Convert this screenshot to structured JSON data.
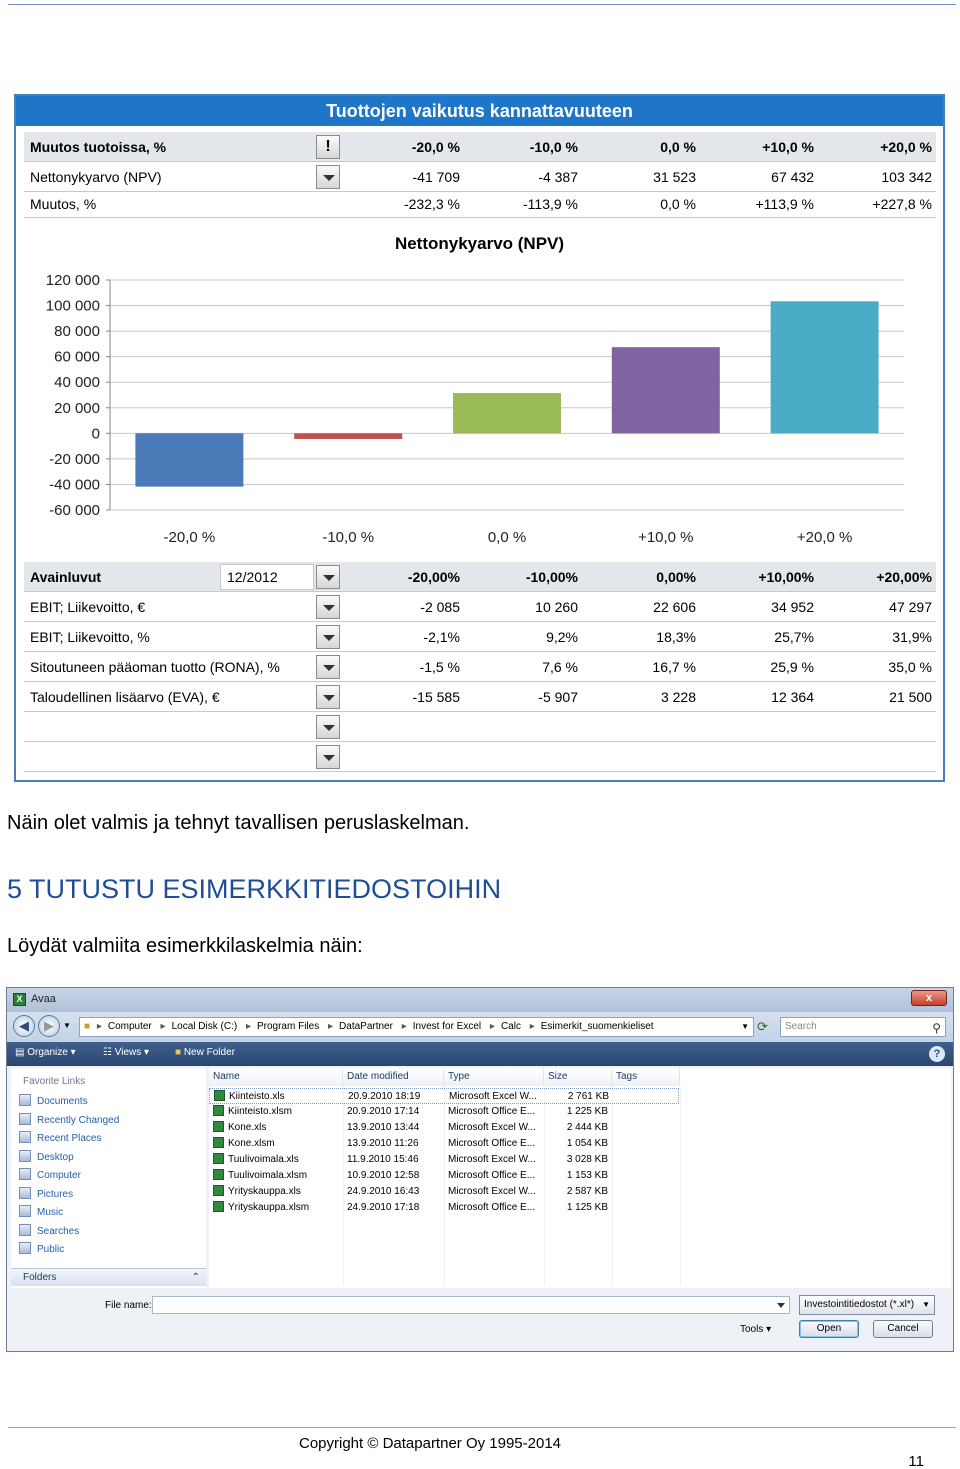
{
  "excel": {
    "title": "Tuottojen vaikutus kannattavuuteen",
    "top_table": {
      "header_label": "Muutos tuotoissa, %",
      "header_button": "!",
      "columns": [
        "-20,0 %",
        "-10,0 %",
        "0,0 %",
        "+10,0 %",
        "+20,0 %"
      ],
      "rows": [
        {
          "label": "Nettonykyarvo (NPV)",
          "values": [
            "-41 709",
            "-4 387",
            "31 523",
            "67 432",
            "103 342"
          ]
        },
        {
          "label": "Muutos, %",
          "values": [
            "-232,3 %",
            "-113,9 %",
            "0,0 %",
            "+113,9 %",
            "+227,8 %"
          ]
        }
      ]
    },
    "bottom_table": {
      "header_label": "Avainluvut",
      "period": "12/2012",
      "columns": [
        "-20,00%",
        "-10,00%",
        "0,00%",
        "+10,00%",
        "+20,00%"
      ],
      "rows": [
        {
          "label": "EBIT; Liikevoitto, €",
          "values": [
            "-2 085",
            "10 260",
            "22 606",
            "34 952",
            "47 297"
          ]
        },
        {
          "label": "EBIT; Liikevoitto, %",
          "values": [
            "-2,1%",
            "9,2%",
            "18,3%",
            "25,7%",
            "31,9%"
          ]
        },
        {
          "label": "Sitoutuneen pääoman tuotto (RONA), %",
          "values": [
            "-1,5 %",
            "7,6 %",
            "16,7 %",
            "25,9 %",
            "35,0 %"
          ]
        },
        {
          "label": "Taloudellinen lisäarvo (EVA), €",
          "values": [
            "-15 585",
            "-5 907",
            "3 228",
            "12 364",
            "21 500"
          ]
        },
        {
          "label": "",
          "values": [
            "",
            "",
            "",
            "",
            ""
          ]
        },
        {
          "label": "",
          "values": [
            "",
            "",
            "",
            "",
            ""
          ]
        }
      ]
    }
  },
  "chart_data": {
    "type": "bar",
    "title": "Nettonykyarvo (NPV)",
    "categories": [
      "-20,0 %",
      "-10,0 %",
      "0,0 %",
      "+10,0 %",
      "+20,0 %"
    ],
    "values": [
      -41709,
      -4387,
      31523,
      67432,
      103342
    ],
    "colors": [
      "#4a7ab8",
      "#c0504d",
      "#9bbb59",
      "#8064a2",
      "#4bacc6"
    ],
    "ylim": [
      -60000,
      120000
    ],
    "yticks": [
      "120 000",
      "100 000",
      "80 000",
      "60 000",
      "40 000",
      "20 000",
      "0",
      "-20 000",
      "-40 000",
      "-60 000"
    ],
    "grid": true,
    "legend": "none"
  },
  "text": {
    "para1": "Näin olet valmis ja tehnyt tavallisen peruslaskelman.",
    "heading": "5 TUTUSTU ESIMERKKITIEDOSTOIHIN",
    "para2": "Löydät valmiita esimerkkilaskelmia näin:"
  },
  "dialog": {
    "title": "Avaa",
    "close_label": "x",
    "breadcrumb": [
      "Computer",
      "Local Disk (C:)",
      "Program Files",
      "DataPartner",
      "Invest for Excel",
      "Calc",
      "Esimerkit_suomenkieliset"
    ],
    "search_placeholder": "Search",
    "toolbar": {
      "organize": "Organize",
      "views": "Views",
      "new_folder": "New Folder",
      "help": "?"
    },
    "favorite_links_label": "Favorite Links",
    "favorite_links": [
      "Documents",
      "Recently Changed",
      "Recent Places",
      "Desktop",
      "Computer",
      "Pictures",
      "Music",
      "Searches",
      "Public"
    ],
    "folders_label": "Folders",
    "columns": [
      "Name",
      "Date modified",
      "Type",
      "Size",
      "Tags"
    ],
    "files": [
      {
        "name": "Kiinteisto.xls",
        "date": "20.9.2010 18:19",
        "type": "Microsoft Excel W...",
        "size": "2 761 KB"
      },
      {
        "name": "Kiinteisto.xlsm",
        "date": "20.9.2010 17:14",
        "type": "Microsoft Office E...",
        "size": "1 225 KB"
      },
      {
        "name": "Kone.xls",
        "date": "13.9.2010 13:44",
        "type": "Microsoft Excel W...",
        "size": "2 444 KB"
      },
      {
        "name": "Kone.xlsm",
        "date": "13.9.2010 11:26",
        "type": "Microsoft Office E...",
        "size": "1 054 KB"
      },
      {
        "name": "Tuulivoimala.xls",
        "date": "11.9.2010 15:46",
        "type": "Microsoft Excel W...",
        "size": "3 028 KB"
      },
      {
        "name": "Tuulivoimala.xlsm",
        "date": "10.9.2010 12:58",
        "type": "Microsoft Office E...",
        "size": "1 153 KB"
      },
      {
        "name": "Yrityskauppa.xls",
        "date": "24.9.2010 16:43",
        "type": "Microsoft Excel W...",
        "size": "2 587 KB"
      },
      {
        "name": "Yrityskauppa.xlsm",
        "date": "24.9.2010 17:18",
        "type": "Microsoft Office E...",
        "size": "1 125 KB"
      }
    ],
    "file_name_label": "File name:",
    "file_name_value": "",
    "filter_value": "Investointitiedostot (*.xl*)",
    "tools_label": "Tools",
    "open_label": "Open",
    "cancel_label": "Cancel"
  },
  "footer": {
    "copyright": "Copyright © Datapartner Oy 1995-2014",
    "page": "11"
  }
}
